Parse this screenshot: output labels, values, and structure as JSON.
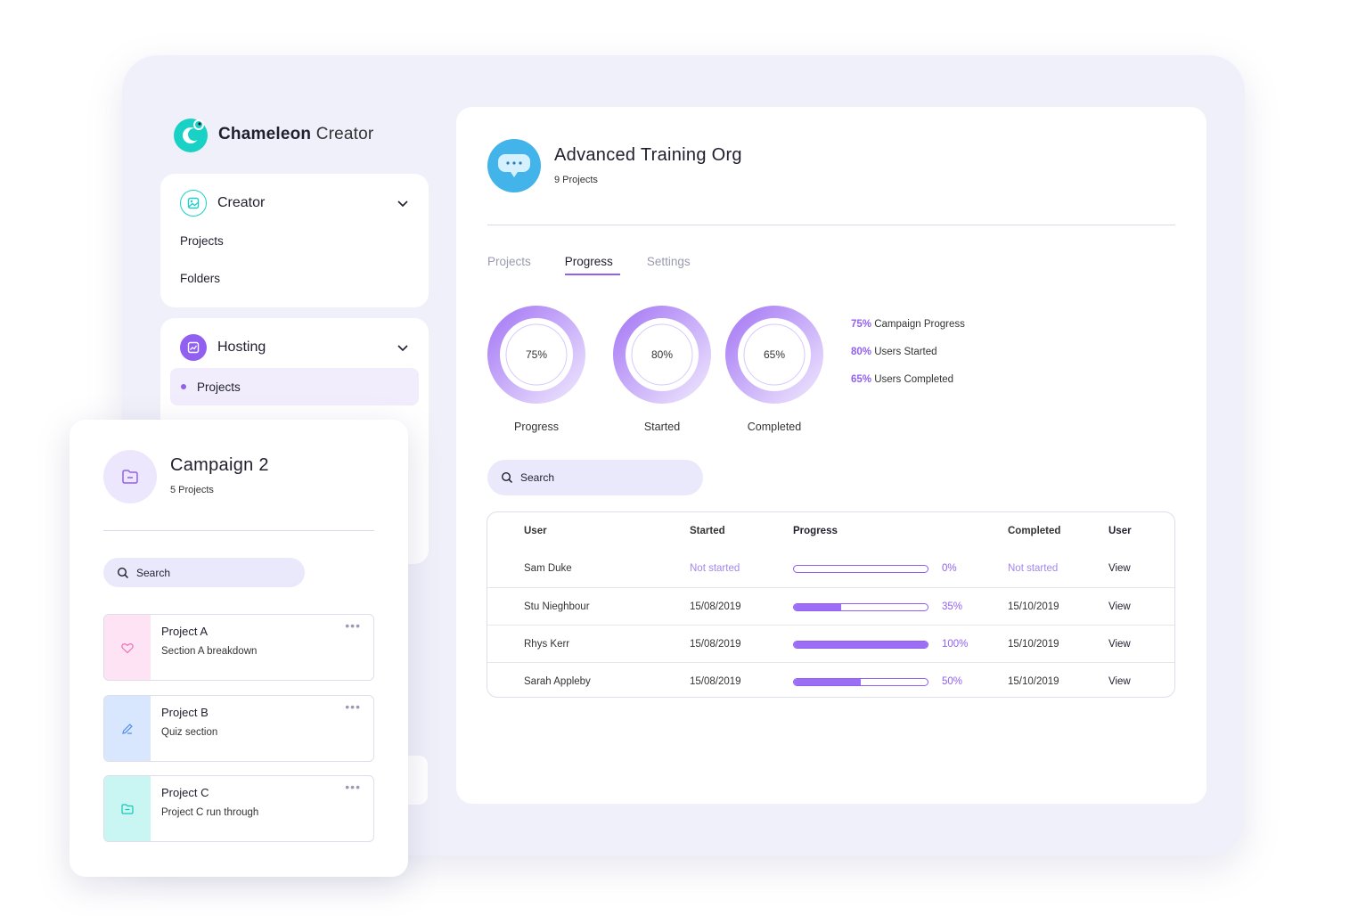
{
  "brand": {
    "name_bold": "Chameleon",
    "name_light": "Creator",
    "logo_icon": "chameleon-logo-icon",
    "accent": "#9160f0",
    "teal": "#19d1c5"
  },
  "sidebar": {
    "creator": {
      "title": "Creator",
      "icon": "image-icon",
      "items": [
        "Projects",
        "Folders"
      ]
    },
    "hosting": {
      "title": "Hosting",
      "icon": "chart-icon",
      "items": [
        {
          "label": "Projects",
          "active": true
        }
      ]
    }
  },
  "org": {
    "title": "Advanced Training Org",
    "subtitle": "9 Projects",
    "icon": "chat-bubble-icon"
  },
  "tabs": [
    {
      "label": "Projects",
      "active": false
    },
    {
      "label": "Progress",
      "active": true
    },
    {
      "label": "Settings",
      "active": false
    }
  ],
  "stats": [
    {
      "value": "75%",
      "label": "Progress",
      "fraction": 0.75
    },
    {
      "value": "80%",
      "label": "Started",
      "fraction": 0.8
    },
    {
      "value": "65%",
      "label": "Completed",
      "fraction": 0.65
    }
  ],
  "legend": [
    {
      "value": "75%",
      "text": "Campaign Progress"
    },
    {
      "value": "80%",
      "text": "Users Started"
    },
    {
      "value": "65%",
      "text": "Users Completed"
    }
  ],
  "search": {
    "placeholder": "Search"
  },
  "table": {
    "headers": {
      "user": "User",
      "started": "Started",
      "progress": "Progress",
      "completed": "Completed",
      "action": "User"
    },
    "rows": [
      {
        "user": "Sam Duke",
        "started": "Not started",
        "progress": 0,
        "pct": "0%",
        "completed": "Not started",
        "action": "View"
      },
      {
        "user": "Stu Nieghbour",
        "started": "15/08/2019",
        "progress": 0.35,
        "pct": "35%",
        "completed": "15/10/2019",
        "action": "View"
      },
      {
        "user": "Rhys Kerr",
        "started": "15/08/2019",
        "progress": 1.0,
        "pct": "100%",
        "completed": "15/10/2019",
        "action": "View"
      },
      {
        "user": "Sarah Appleby",
        "started": "15/08/2019",
        "progress": 0.5,
        "pct": "50%",
        "completed": "15/10/2019",
        "action": "View"
      }
    ]
  },
  "campaign": {
    "title": "Campaign 2",
    "subtitle": "5 Projects",
    "icon": "folder-icon",
    "search_placeholder": "Search",
    "projects": [
      {
        "title": "Project A",
        "desc": "Section A breakdown",
        "icon": "heart-icon",
        "color": "#fde3f3"
      },
      {
        "title": "Project B",
        "desc": "Quiz section",
        "icon": "pencil-icon",
        "color": "#d8e7fd"
      },
      {
        "title": "Project C",
        "desc": "Project C run through",
        "icon": "folder-icon",
        "color": "#c9f6f2"
      }
    ]
  }
}
